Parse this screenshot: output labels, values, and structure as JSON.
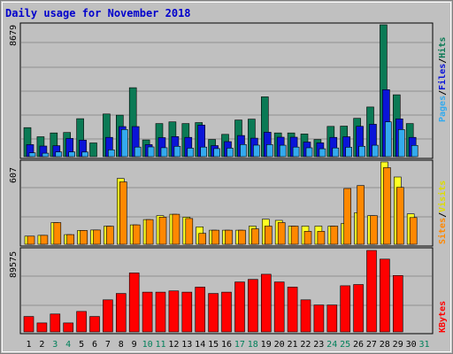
{
  "chart_data": [
    {
      "type": "bar",
      "title": "Daily usage for November 2018",
      "categories": [
        "1",
        "2",
        "3",
        "4",
        "5",
        "6",
        "7",
        "8",
        "9",
        "10",
        "11",
        "12",
        "13",
        "14",
        "15",
        "16",
        "17",
        "18",
        "19",
        "20",
        "21",
        "22",
        "23",
        "24",
        "25",
        "26",
        "27",
        "28",
        "29",
        "30",
        "31"
      ],
      "weekend_days": [
        "3",
        "4",
        "10",
        "11",
        "17",
        "18",
        "24",
        "25",
        "31"
      ],
      "max_label": "8679",
      "ylim": [
        0,
        8679
      ],
      "series": [
        {
          "name": "Hits",
          "color": "#0b7a55",
          "values": [
            1910,
            1310,
            1560,
            1590,
            2500,
            900,
            2810,
            2730,
            4540,
            1100,
            2180,
            2290,
            2180,
            2240,
            1130,
            1470,
            2410,
            2470,
            3940,
            1560,
            1560,
            1490,
            1130,
            1990,
            2010,
            2520,
            3270,
            8679,
            4070,
            2180,
            0
          ]
        },
        {
          "name": "Files",
          "color": "#0a14d8",
          "values": [
            790,
            700,
            720,
            1200,
            1090,
            0,
            1270,
            1980,
            1980,
            790,
            1250,
            1320,
            1270,
            2080,
            730,
            990,
            1390,
            1220,
            1610,
            1280,
            1280,
            960,
            910,
            1270,
            1310,
            2000,
            2130,
            4410,
            2490,
            1270,
            0
          ]
        },
        {
          "name": "Pages",
          "color": "#33aaee",
          "values": [
            250,
            230,
            310,
            310,
            300,
            0,
            450,
            1790,
            630,
            640,
            590,
            680,
            560,
            630,
            530,
            560,
            800,
            760,
            790,
            750,
            630,
            580,
            520,
            570,
            620,
            680,
            750,
            2290,
            1780,
            740,
            0
          ]
        }
      ]
    },
    {
      "type": "bar",
      "max_label": "607",
      "ylim": [
        0,
        607
      ],
      "series": [
        {
          "name": "Visits",
          "color": "#ffff22",
          "values": [
            60,
            66,
            160,
            71,
            102,
            105,
            133,
            485,
            143,
            182,
            211,
            221,
            200,
            128,
            104,
            104,
            104,
            134,
            185,
            176,
            134,
            134,
            134,
            134,
            154,
            233,
            211,
            607,
            496,
            224,
            0
          ]
        },
        {
          "name": "Sites",
          "color": "#ff8800",
          "values": [
            60,
            66,
            160,
            71,
            102,
            105,
            133,
            460,
            143,
            182,
            200,
            221,
            190,
            80,
            104,
            104,
            104,
            114,
            134,
            160,
            134,
            95,
            95,
            134,
            411,
            433,
            211,
            565,
            420,
            197,
            0
          ]
        }
      ]
    },
    {
      "type": "bar",
      "max_label": "89575",
      "ylim": [
        0,
        89575
      ],
      "series": [
        {
          "name": "KBytes",
          "color": "#ff0000",
          "values": [
            16900,
            9860,
            19700,
            9860,
            22500,
            16900,
            35200,
            42300,
            64800,
            43700,
            43700,
            45100,
            43700,
            49300,
            42300,
            43700,
            54900,
            57700,
            63400,
            54900,
            49300,
            35200,
            29600,
            29600,
            50700,
            52100,
            89575,
            80000,
            62000,
            0,
            0
          ]
        }
      ]
    }
  ]
}
